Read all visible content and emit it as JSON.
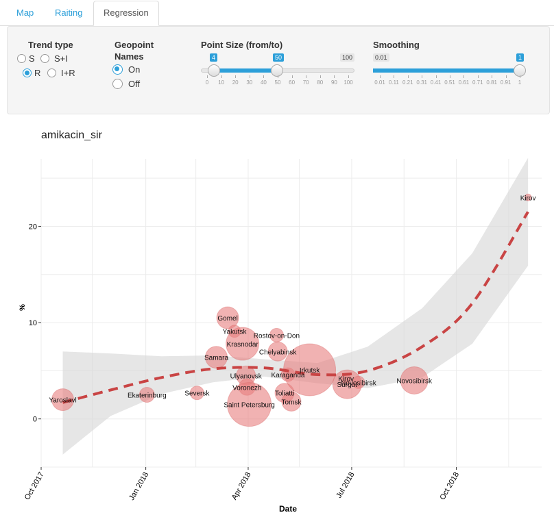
{
  "tabs": [
    {
      "label": "Map"
    },
    {
      "label": "Raiting"
    },
    {
      "label": "Regression",
      "active": true
    }
  ],
  "controls": {
    "trend_type": {
      "label": "Trend type",
      "options": [
        "S",
        "S+I",
        "R",
        "I+R"
      ],
      "selected": "R"
    },
    "geopoint_names": {
      "label_line1": "Geopoint",
      "label_line2": "Names",
      "options": [
        "On",
        "Off"
      ],
      "selected": "On"
    },
    "point_size": {
      "label": "Point Size (from/to)",
      "from": "4",
      "to": "50",
      "max": "100",
      "ticks": [
        "0",
        "10",
        "20",
        "30",
        "40",
        "50",
        "60",
        "70",
        "80",
        "90",
        "100"
      ]
    },
    "smoothing": {
      "label": "Smoothing",
      "min": "0.01",
      "value": "1",
      "ticks": [
        "0.01",
        "0.11",
        "0.21",
        "0.31",
        "0.41",
        "0.51",
        "0.61",
        "0.71",
        "0.81",
        "0.91",
        "1"
      ]
    }
  },
  "chart_data": {
    "type": "scatter",
    "title": "amikacin_sir",
    "xlabel": "Date",
    "ylabel": "%",
    "x_ticks": [
      "Oct 2017",
      "Jan 2018",
      "Apr 2018",
      "Jul 2018",
      "Oct 2018"
    ],
    "y_ticks": [
      "0",
      "10",
      "20"
    ],
    "ylim": [
      -5,
      27
    ],
    "xlim": [
      "2017-10-01",
      "2018-12-15"
    ],
    "grid": true,
    "colors": {
      "points": "#e87f7f",
      "trend": "#c94444",
      "ribbon": "#d9d9d9",
      "accent": "#2c9fd9"
    },
    "points": [
      {
        "label": "Yaroslavl",
        "date": "2017-10-20",
        "y": 2.0,
        "size": 16
      },
      {
        "label": "Ekaterinburg",
        "date": "2018-01-02",
        "y": 2.5,
        "size": 11
      },
      {
        "label": "Seversk",
        "date": "2018-02-15",
        "y": 2.7,
        "size": 10
      },
      {
        "label": "Gomel",
        "date": "2018-03-14",
        "y": 10.5,
        "size": 16
      },
      {
        "label": "Yakutsk",
        "date": "2018-03-20",
        "y": 9.1,
        "size": 9
      },
      {
        "label": "Krasnodar",
        "date": "2018-03-27",
        "y": 7.8,
        "size": 24
      },
      {
        "label": "Samara",
        "date": "2018-03-04",
        "y": 6.4,
        "size": 16
      },
      {
        "label": "Ulyanovsk",
        "date": "2018-03-30",
        "y": 4.5,
        "size": 14
      },
      {
        "label": "Voronezh",
        "date": "2018-03-31",
        "y": 3.3,
        "size": 12
      },
      {
        "label": "Saint Petersburg",
        "date": "2018-04-02",
        "y": 1.5,
        "size": 32
      },
      {
        "label": "Rostov-on-Don",
        "date": "2018-04-26",
        "y": 8.7,
        "size": 10
      },
      {
        "label": "Chelyabinsk",
        "date": "2018-04-27",
        "y": 7.0,
        "size": 14
      },
      {
        "label": "Karaganda",
        "date": "2018-05-06",
        "y": 4.6,
        "size": 10
      },
      {
        "label": "Toliatti",
        "date": "2018-05-03",
        "y": 2.7,
        "size": 14
      },
      {
        "label": "Tomsk",
        "date": "2018-05-09",
        "y": 1.8,
        "size": 14
      },
      {
        "label": "Irkutsk",
        "date": "2018-05-25",
        "y": 5.1,
        "size": 38
      },
      {
        "label": "Kirov",
        "date": "2018-06-26",
        "y": 4.2,
        "size": 7
      },
      {
        "label": "Surgut",
        "date": "2018-06-27",
        "y": 3.6,
        "size": 21
      },
      {
        "label": "Novosibirsk",
        "date": "2018-07-07",
        "y": 3.8,
        "size": 9
      },
      {
        "label": "Novosibirsk",
        "date": "2018-08-25",
        "y": 4.0,
        "size": 20
      },
      {
        "label": "Kirov",
        "date": "2018-12-03",
        "y": 23.0,
        "size": 5
      }
    ],
    "trend": [
      {
        "date": "2017-10-20",
        "y": 1.7,
        "lo": -3.7,
        "hi": 7.0
      },
      {
        "date": "2017-12-01",
        "y": 3.0,
        "lo": 0.3,
        "hi": 6.8
      },
      {
        "date": "2018-01-15",
        "y": 4.3,
        "lo": 2.6,
        "hi": 6.5
      },
      {
        "date": "2018-03-01",
        "y": 5.2,
        "lo": 3.8,
        "hi": 6.6
      },
      {
        "date": "2018-04-15",
        "y": 5.3,
        "lo": 4.4,
        "hi": 6.2
      },
      {
        "date": "2018-06-01",
        "y": 4.6,
        "lo": 3.7,
        "hi": 5.8
      },
      {
        "date": "2018-07-15",
        "y": 5.0,
        "lo": 3.2,
        "hi": 7.5
      },
      {
        "date": "2018-09-01",
        "y": 7.5,
        "lo": 4.3,
        "hi": 11.5
      },
      {
        "date": "2018-10-15",
        "y": 12.0,
        "lo": 7.8,
        "hi": 17.2
      },
      {
        "date": "2018-12-03",
        "y": 21.5,
        "lo": 15.9,
        "hi": 27.1
      }
    ]
  }
}
